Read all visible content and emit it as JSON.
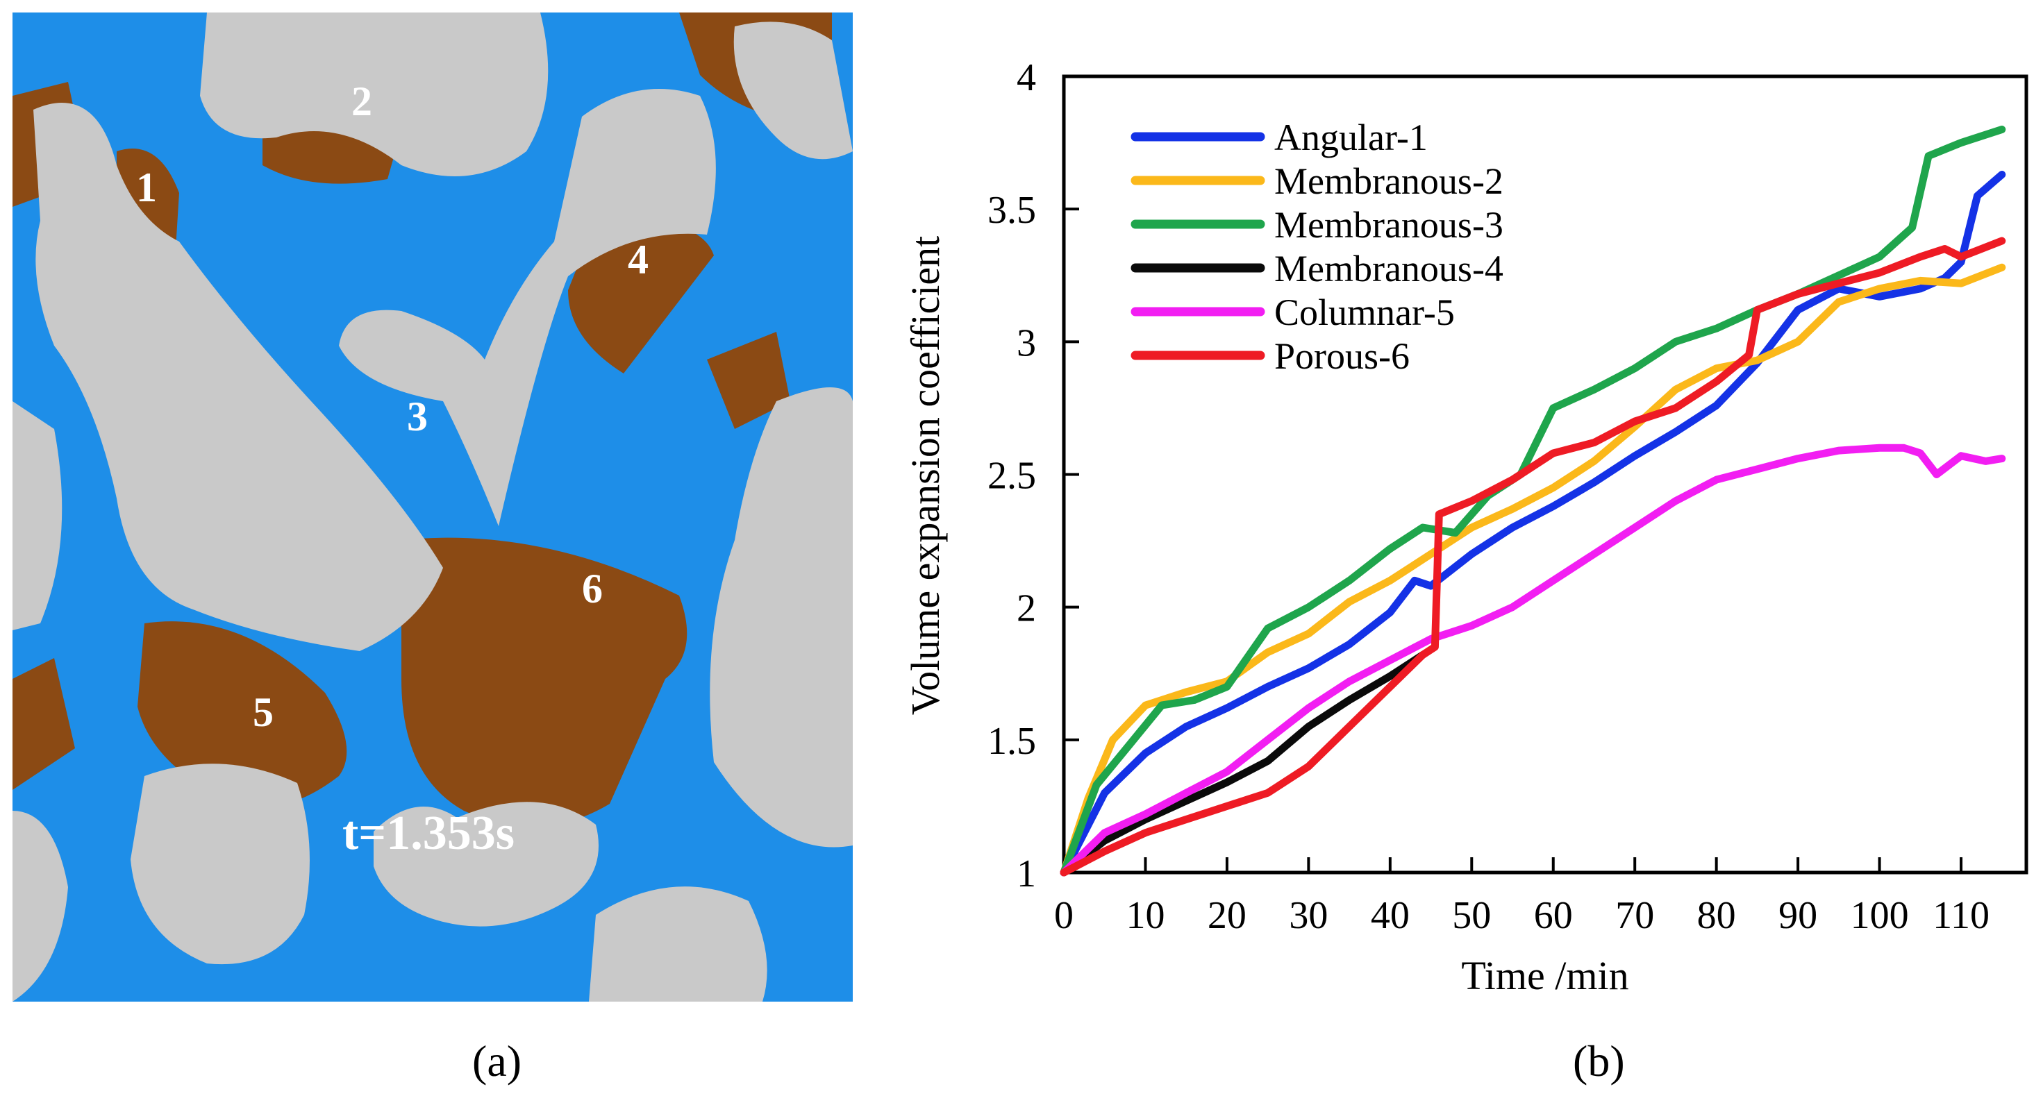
{
  "figure": {
    "panel_a": {
      "caption": "(a)",
      "timestamp": "t=1.353s",
      "region_labels": [
        "1",
        "2",
        "3",
        "4",
        "5",
        "6"
      ],
      "colors": {
        "background": "#1e8ee8",
        "particle": "#c9c9c9",
        "oil": "#8b4a14"
      }
    },
    "panel_b": {
      "caption": "(b)"
    }
  },
  "chart_data": {
    "type": "line",
    "xlabel": "Time /min",
    "ylabel": "Volume expansion coefficient",
    "xlim": [
      0,
      118
    ],
    "ylim": [
      1,
      4
    ],
    "xticks": [
      0,
      10,
      20,
      30,
      40,
      50,
      60,
      70,
      80,
      90,
      100,
      110
    ],
    "yticks": [
      1,
      1.5,
      2,
      2.5,
      3,
      3.5,
      4
    ],
    "ytick_labels": [
      "1",
      "1.5",
      "2",
      "2.5",
      "3",
      "3.5",
      "4"
    ],
    "legend_position": "top-left",
    "series": [
      {
        "name": "Angular-1",
        "color": "#1432e6",
        "x": [
          0,
          5,
          10,
          15,
          20,
          25,
          30,
          35,
          40,
          43,
          45,
          50,
          55,
          60,
          65,
          70,
          75,
          80,
          85,
          90,
          95,
          100,
          105,
          108,
          110,
          112,
          115
        ],
        "y": [
          1.0,
          1.3,
          1.45,
          1.55,
          1.62,
          1.7,
          1.77,
          1.86,
          1.98,
          2.1,
          2.08,
          2.2,
          2.3,
          2.38,
          2.47,
          2.57,
          2.66,
          2.76,
          2.92,
          3.12,
          3.2,
          3.17,
          3.2,
          3.24,
          3.3,
          3.55,
          3.63
        ]
      },
      {
        "name": "Membranous-2",
        "color": "#fbb81a",
        "x": [
          0,
          3,
          6,
          10,
          15,
          20,
          25,
          30,
          35,
          40,
          45,
          50,
          55,
          60,
          65,
          70,
          75,
          80,
          85,
          90,
          95,
          100,
          105,
          110,
          115
        ],
        "y": [
          1.0,
          1.28,
          1.5,
          1.63,
          1.68,
          1.72,
          1.83,
          1.9,
          2.02,
          2.1,
          2.2,
          2.3,
          2.37,
          2.45,
          2.55,
          2.68,
          2.82,
          2.9,
          2.93,
          3.0,
          3.15,
          3.2,
          3.23,
          3.22,
          3.28
        ]
      },
      {
        "name": "Membranous-3",
        "color": "#1fa54c",
        "x": [
          0,
          4,
          8,
          12,
          16,
          20,
          25,
          30,
          35,
          40,
          44,
          48,
          52,
          56,
          60,
          65,
          70,
          75,
          80,
          85,
          90,
          95,
          100,
          104,
          106,
          110,
          115
        ],
        "y": [
          1.0,
          1.33,
          1.48,
          1.63,
          1.65,
          1.7,
          1.92,
          2.0,
          2.1,
          2.22,
          2.3,
          2.28,
          2.42,
          2.5,
          2.75,
          2.82,
          2.9,
          3.0,
          3.05,
          3.12,
          3.18,
          3.25,
          3.32,
          3.43,
          3.7,
          3.75,
          3.8
        ]
      },
      {
        "name": "Membranous-4",
        "color": "#0a0a0a",
        "x": [
          0,
          5,
          10,
          15,
          20,
          25,
          30,
          35,
          40,
          44
        ],
        "y": [
          1.0,
          1.12,
          1.2,
          1.27,
          1.34,
          1.42,
          1.55,
          1.65,
          1.74,
          1.82
        ]
      },
      {
        "name": "Columnar-5",
        "color": "#f21ef2",
        "x": [
          0,
          5,
          10,
          15,
          20,
          25,
          30,
          35,
          40,
          45,
          50,
          55,
          60,
          65,
          70,
          75,
          80,
          85,
          90,
          95,
          100,
          103,
          105,
          107,
          110,
          113,
          115
        ],
        "y": [
          1.0,
          1.15,
          1.22,
          1.3,
          1.38,
          1.5,
          1.62,
          1.72,
          1.8,
          1.88,
          1.93,
          2.0,
          2.1,
          2.2,
          2.3,
          2.4,
          2.48,
          2.52,
          2.56,
          2.59,
          2.6,
          2.6,
          2.58,
          2.5,
          2.57,
          2.55,
          2.56
        ]
      },
      {
        "name": "Porous-6",
        "color": "#ee1b24",
        "x": [
          0,
          5,
          10,
          15,
          20,
          25,
          30,
          35,
          40,
          44,
          45.5,
          46,
          50,
          55,
          60,
          65,
          70,
          75,
          80,
          84,
          85,
          90,
          95,
          100,
          105,
          108,
          110,
          115
        ],
        "y": [
          1.0,
          1.08,
          1.15,
          1.2,
          1.25,
          1.3,
          1.4,
          1.55,
          1.7,
          1.82,
          1.85,
          2.35,
          2.4,
          2.48,
          2.58,
          2.62,
          2.7,
          2.75,
          2.85,
          2.95,
          3.12,
          3.18,
          3.22,
          3.26,
          3.32,
          3.35,
          3.32,
          3.38
        ]
      }
    ]
  }
}
